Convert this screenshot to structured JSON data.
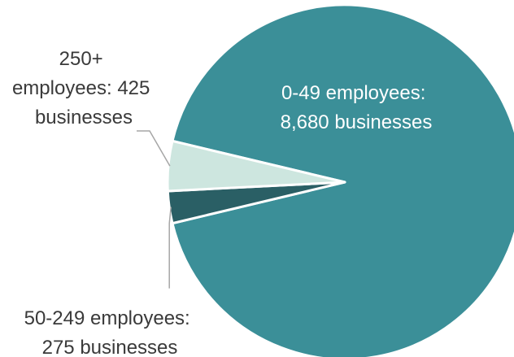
{
  "chart_data": {
    "type": "pie",
    "title": "",
    "slices": [
      {
        "category": "0-49 employees",
        "value": 8680,
        "label_lines": [
          "0-49 employees:",
          "8,680 businesses"
        ],
        "color": "#3b8f98"
      },
      {
        "category": "50-249 employees",
        "value": 275,
        "label_lines": [
          "50-249 employees:",
          "275 businesses"
        ],
        "color": "#2a5f65"
      },
      {
        "category": "250+ employees",
        "value": 425,
        "label_lines": [
          "250+",
          "employees: 425",
          "businesses"
        ],
        "color": "#cde6df"
      }
    ],
    "legend": "none",
    "slice_border_color": "#ffffff",
    "leader_line_color": "#a6a6a6"
  }
}
